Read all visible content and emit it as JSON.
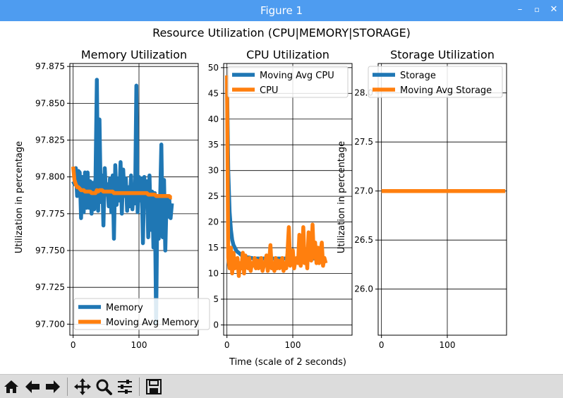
{
  "window": {
    "title": "Figure 1",
    "buttons": {
      "minimize": "–",
      "maximize": "▫",
      "close": "✕"
    }
  },
  "figure": {
    "suptitle": "Resource Utilization (CPU|MEMORY|STORAGE)",
    "shared_xlabel": "Time (scale of 2 seconds)"
  },
  "colors": {
    "blue": "#1f77b4",
    "orange": "#ff7f0e",
    "titlebar": "#4e9cf0",
    "toolbar": "#dcdcdc"
  },
  "toolbar": {
    "icons": [
      "home-icon",
      "back-arrow-icon",
      "forward-arrow-icon",
      "pan-icon",
      "zoom-icon",
      "configure-subplots-icon",
      "save-icon"
    ]
  },
  "chart_data": [
    {
      "type": "line",
      "title": "Memory Utilization",
      "ylabel": "Utilization in percentage",
      "xlabel": "",
      "xlim": [
        -5,
        190
      ],
      "ylim": [
        97.6925,
        97.877
      ],
      "xticks": [
        0,
        100
      ],
      "yticks": [
        97.7,
        97.725,
        97.75,
        97.775,
        97.8,
        97.825,
        97.85,
        97.875
      ],
      "ytick_labels": [
        "97.700",
        "97.725",
        "97.750",
        "97.775",
        "97.800",
        "97.825",
        "97.850",
        "97.875"
      ],
      "grid": true,
      "legend": "lower-left",
      "series": [
        {
          "name": "Memory",
          "color": "#1f77b4",
          "x_start": 0,
          "x_step": 2,
          "values": [
            97.797,
            97.795,
            97.806,
            97.787,
            97.804,
            97.803,
            97.772,
            97.8,
            97.776,
            97.803,
            97.779,
            97.803,
            97.779,
            97.797,
            97.775,
            97.796,
            97.778,
            97.799,
            97.866,
            97.777,
            97.839,
            97.783,
            97.801,
            97.767,
            97.806,
            97.788,
            97.795,
            97.78,
            97.799,
            97.776,
            97.801,
            97.758,
            97.808,
            97.781,
            97.799,
            97.784,
            97.81,
            97.775,
            97.805,
            97.787,
            97.799,
            97.777,
            97.793,
            97.78,
            97.801,
            97.778,
            97.792,
            97.782,
            97.862,
            97.776,
            97.8,
            97.784,
            97.799,
            97.755,
            97.8,
            97.781,
            97.797,
            97.759,
            97.801,
            97.764,
            97.79,
            97.752,
            97.789,
            97.701,
            97.787,
            97.758,
            97.783,
            97.822,
            97.759,
            97.798,
            97.75,
            97.787,
            97.773,
            97.785,
            97.772,
            97.782
          ]
        },
        {
          "name": "Moving Avg Memory",
          "color": "#ff7f0e",
          "x_start": 0,
          "x_step": 2,
          "values": [
            97.807,
            97.798,
            97.795,
            97.793,
            97.793,
            97.792,
            97.791,
            97.791,
            97.791,
            97.79,
            97.79,
            97.79,
            97.79,
            97.79,
            97.789,
            97.789,
            97.789,
            97.789,
            97.791,
            97.79,
            97.791,
            97.791,
            97.791,
            97.79,
            97.79,
            97.79,
            97.79,
            97.79,
            97.79,
            97.79,
            97.79,
            97.789,
            97.789,
            97.789,
            97.789,
            97.789,
            97.789,
            97.789,
            97.789,
            97.789,
            97.789,
            97.789,
            97.789,
            97.789,
            97.789,
            97.789,
            97.789,
            97.789,
            97.789,
            97.789,
            97.789,
            97.789,
            97.789,
            97.789,
            97.789,
            97.789,
            97.789,
            97.788,
            97.788,
            97.788,
            97.788,
            97.788,
            97.788,
            97.787,
            97.787,
            97.787,
            97.787,
            97.787,
            97.787,
            97.787,
            97.787,
            97.787,
            97.787,
            97.787,
            97.786,
            97.786
          ]
        }
      ]
    },
    {
      "type": "line",
      "title": "CPU Utilization",
      "ylabel": "",
      "xlabel": "Time (scale of 2 seconds)",
      "xlim": [
        -5,
        190
      ],
      "ylim": [
        -2,
        50.8
      ],
      "xticks": [
        0,
        100
      ],
      "yticks": [
        0,
        5,
        10,
        15,
        20,
        25,
        30,
        35,
        40,
        45,
        50
      ],
      "ytick_labels": [
        "0",
        "5",
        "10",
        "15",
        "20",
        "25",
        "30",
        "35",
        "40",
        "45",
        "50"
      ],
      "grid": true,
      "legend": "top-right",
      "series": [
        {
          "name": "Moving Avg CPU",
          "color": "#1f77b4",
          "x_start": 0,
          "x_step": 2,
          "values": [
            48,
            30,
            22,
            18.5,
            16.5,
            15.5,
            15,
            14.5,
            14.2,
            14,
            13.8,
            13.6,
            13.5,
            13.4,
            13.3,
            13.2,
            13.1,
            13.1,
            13.0,
            13.0,
            12.9,
            12.9,
            12.9,
            12.9,
            12.9,
            12.9,
            12.9,
            12.9,
            12.9,
            12.9,
            12.9,
            12.9,
            12.9,
            12.9,
            12.9,
            12.9,
            12.9,
            12.9,
            12.9,
            12.9,
            12.9,
            12.9,
            12.9,
            12.9,
            12.9,
            12.9,
            12.9,
            12.9,
            12.9,
            12.9,
            12.9,
            12.9,
            12.9,
            12.9,
            12.9,
            12.9,
            12.9,
            12.9,
            12.9,
            12.9,
            12.9,
            12.9,
            12.9,
            12.9,
            12.9,
            12.9,
            12.9,
            12.9,
            12.9,
            12.9,
            12.9,
            12.9,
            12.9,
            12.9,
            12.9,
            12.9
          ]
        },
        {
          "name": "CPU",
          "color": "#ff7f0e",
          "x_start": 0,
          "x_step": 2,
          "values": [
            48.5,
            13,
            11,
            15,
            10,
            14,
            11,
            12.5,
            13,
            9.5,
            12,
            11,
            14,
            10,
            13.5,
            12,
            11,
            13,
            10.5,
            12,
            11.5,
            13,
            11,
            12.5,
            11,
            12,
            13,
            10.5,
            11.5,
            12,
            13.5,
            10.5,
            12,
            15.5,
            11,
            12,
            10.5,
            13,
            11,
            12.5,
            11,
            12,
            13,
            10.5,
            12,
            11,
            14,
            19,
            11.5,
            12,
            14.5,
            11,
            12.5,
            13,
            12,
            17.5,
            11.5,
            13,
            19,
            12,
            14.5,
            11,
            18,
            14,
            12.5,
            19.5,
            13,
            16,
            12,
            15,
            12,
            14,
            16,
            11.5,
            13,
            12
          ]
        }
      ]
    },
    {
      "type": "line",
      "title": "Storage Utilization",
      "ylabel": "Utilization in percentage",
      "xlabel": "",
      "xlim": [
        -5,
        190
      ],
      "ylim": [
        25.53,
        28.3
      ],
      "xticks": [
        0,
        100
      ],
      "yticks": [
        26.0,
        26.5,
        27.0,
        27.5,
        28.0
      ],
      "ytick_labels": [
        "26.0",
        "26.5",
        "27.0",
        "27.5",
        "28.0"
      ],
      "grid": true,
      "legend": "top-left",
      "series": [
        {
          "name": "Storage",
          "color": "#1f77b4",
          "x_start": 0,
          "x_step": 2,
          "values": [
            27.0,
            27.0,
            27.0,
            27.0,
            27.0,
            27.0,
            27.0,
            27.0,
            27.0,
            27.0,
            27.0,
            27.0,
            27.0,
            27.0,
            27.0,
            27.0,
            27.0,
            27.0,
            27.0,
            27.0,
            27.0,
            27.0,
            27.0,
            27.0,
            27.0,
            27.0,
            27.0,
            27.0,
            27.0,
            27.0,
            27.0,
            27.0,
            27.0,
            27.0,
            27.0,
            27.0,
            27.0,
            27.0,
            27.0,
            27.0,
            27.0,
            27.0,
            27.0,
            27.0,
            27.0,
            27.0,
            27.0,
            27.0,
            27.0,
            27.0,
            27.0,
            27.0,
            27.0,
            27.0,
            27.0,
            27.0,
            27.0,
            27.0,
            27.0,
            27.0,
            27.0,
            27.0,
            27.0,
            27.0,
            27.0,
            27.0,
            27.0,
            27.0,
            27.0,
            27.0,
            27.0,
            27.0,
            27.0,
            27.0,
            27.0,
            27.0,
            27.0,
            27.0,
            27.0,
            27.0,
            27.0,
            27.0,
            27.0,
            27.0,
            27.0,
            27.0,
            27.0,
            27.0,
            27.0,
            27.0,
            27.0,
            27.0,
            27.0,
            27.0,
            27.0
          ]
        },
        {
          "name": "Moving Avg Storage",
          "color": "#ff7f0e",
          "x_start": 0,
          "x_step": 2,
          "values": [
            27.0,
            27.0,
            27.0,
            27.0,
            27.0,
            27.0,
            27.0,
            27.0,
            27.0,
            27.0,
            27.0,
            27.0,
            27.0,
            27.0,
            27.0,
            27.0,
            27.0,
            27.0,
            27.0,
            27.0,
            27.0,
            27.0,
            27.0,
            27.0,
            27.0,
            27.0,
            27.0,
            27.0,
            27.0,
            27.0,
            27.0,
            27.0,
            27.0,
            27.0,
            27.0,
            27.0,
            27.0,
            27.0,
            27.0,
            27.0,
            27.0,
            27.0,
            27.0,
            27.0,
            27.0,
            27.0,
            27.0,
            27.0,
            27.0,
            27.0,
            27.0,
            27.0,
            27.0,
            27.0,
            27.0,
            27.0,
            27.0,
            27.0,
            27.0,
            27.0,
            27.0,
            27.0,
            27.0,
            27.0,
            27.0,
            27.0,
            27.0,
            27.0,
            27.0,
            27.0,
            27.0,
            27.0,
            27.0,
            27.0,
            27.0,
            27.0,
            27.0,
            27.0,
            27.0,
            27.0,
            27.0,
            27.0,
            27.0,
            27.0,
            27.0,
            27.0,
            27.0,
            27.0,
            27.0,
            27.0,
            27.0,
            27.0,
            27.0,
            27.0,
            27.0
          ]
        }
      ]
    }
  ]
}
